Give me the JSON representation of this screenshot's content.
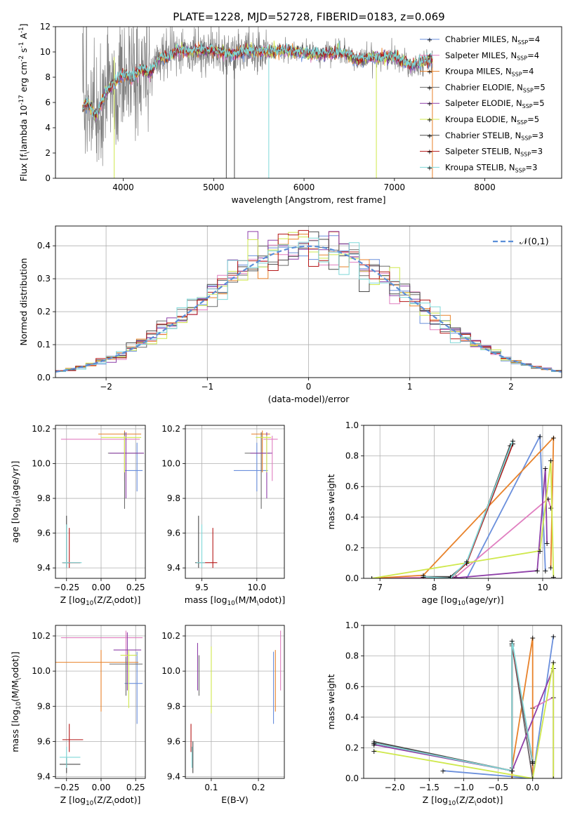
{
  "figure_title": "PLATE=1228, MJD=52728, FIBERID=0183, z=0.069",
  "colors": {
    "chabrier_miles": "#6a8fdc",
    "salpeter_miles": "#e07fc0",
    "kroupa_miles": "#e8822a",
    "chabrier_elodie": "#6b6b6b",
    "salpeter_elodie": "#8e3fa8",
    "kroupa_elodie": "#cfe84c",
    "chabrier_stelib": "#4a4a4a",
    "salpeter_stelib": "#b51818",
    "kroupa_stelib": "#7fd8d8",
    "data_grey": "#808080",
    "normal_curve": "#5b8fd8",
    "grid": "#b0b0b0"
  },
  "chart_data": [
    {
      "type": "line",
      "id": "spectrum",
      "title": "PLATE=1228, MJD=52728, FIBERID=0183, z=0.069",
      "xlabel": "wavelength [Angstrom, rest frame]",
      "ylabel": "Flux [f$_\\lambda 10^{-17}$ erg cm$^{-2}$ s$^{-1}$ A$^{-1}$]",
      "xlim": [
        3250,
        8850
      ],
      "ylim": [
        0,
        12
      ],
      "xticks": [
        "4000",
        "5000",
        "6000",
        "7000",
        "8000"
      ],
      "yticks": [
        "0",
        "2",
        "4",
        "6",
        "8",
        "10",
        "12"
      ],
      "legend_position": "top-right",
      "legend": [
        "Chabrier MILES, N$_{SSP}$=4",
        "Salpeter MILES, N$_{SSP}$=4",
        "Kroupa MILES, N$_{SSP}$=4",
        "Chabrier ELODIE, N$_{SSP}$=5",
        "Salpeter ELODIE, N$_{SSP}$=5",
        "Kroupa ELODIE, N$_{SSP}$=5",
        "Chabrier STELIB, N$_{SSP}$=3",
        "Salpeter STELIB, N$_{SSP}$=3",
        "Kroupa STELIB, N$_{SSP}$=3"
      ],
      "continuum_knots": {
        "x": [
          3550,
          3600,
          3700,
          3800,
          3900,
          4000,
          4100,
          4200,
          4300,
          4400,
          4500,
          4600,
          4700,
          4800,
          5000,
          5200,
          5400,
          5600,
          5800,
          6000,
          6200,
          6400,
          6600,
          6800,
          7000,
          7200,
          7400
        ],
        "y": [
          5.5,
          6.0,
          4.8,
          6.8,
          7.5,
          8.2,
          8.0,
          8.6,
          8.3,
          9.5,
          9.6,
          10.2,
          10.0,
          10.1,
          10.1,
          9.8,
          10.1,
          10.0,
          10.1,
          9.9,
          9.8,
          10.0,
          9.4,
          9.6,
          9.6,
          8.9,
          9.4
        ]
      }
    },
    {
      "type": "line",
      "id": "residual_histogram",
      "xlabel": "(data-model)/error",
      "ylabel": "Normed distribution",
      "xlim": [
        -2.5,
        2.5
      ],
      "ylim": [
        0,
        0.46
      ],
      "xticks": [
        "−2",
        "−1",
        "0",
        "1",
        "2"
      ],
      "yticks": [
        "0.0",
        "0.1",
        "0.2",
        "0.3",
        "0.4"
      ],
      "bin_width": 0.1,
      "legend_position": "top-right",
      "legend": [
        "$\\mathcal{N}(0,1)$"
      ],
      "grid": true
    },
    {
      "type": "scatter",
      "id": "age_vs_Z",
      "xlabel": "Z [log$_{10}$($Z/Z_\\odot$)]",
      "ylabel": "age  [log$_{10}$($age/yr$)]",
      "xlim": [
        -0.33,
        0.32
      ],
      "ylim": [
        9.34,
        10.22
      ],
      "xticks": [
        "−0.25",
        "0.00",
        "0.25"
      ],
      "yticks": [
        "9.4",
        "9.6",
        "9.8",
        "10.0",
        "10.2"
      ],
      "grid": true,
      "points": [
        {
          "x": 0.26,
          "y": 9.96,
          "xerr": [
            0.09,
            0.04
          ],
          "yerr": [
            0.12,
            0.16
          ]
        },
        {
          "x": 0.17,
          "y": 10.14,
          "xerr": [
            0.46,
            0.11
          ],
          "yerr": [
            0.24,
            0.02
          ]
        },
        {
          "x": 0.17,
          "y": 10.17,
          "xerr": [
            0.19,
            0.12
          ],
          "yerr": [
            0.22,
            0.02
          ]
        },
        {
          "x": 0.17,
          "y": 10.06,
          "xerr": [
            0.12,
            0.14
          ],
          "yerr": [
            0.32,
            0.12
          ]
        },
        {
          "x": 0.18,
          "y": 10.06,
          "xerr": [
            0.12,
            0.13
          ],
          "yerr": [
            0.26,
            0.12
          ]
        },
        {
          "x": 0.17,
          "y": 10.15,
          "xerr": [
            0.17,
            0.12
          ],
          "yerr": [
            0.2,
            0.01
          ]
        },
        {
          "x": -0.25,
          "y": 9.43,
          "xerr": [
            0.03,
            0.1
          ],
          "yerr": [
            0.03,
            0.27
          ]
        },
        {
          "x": -0.23,
          "y": 9.43,
          "xerr": [
            0.05,
            0.08
          ],
          "yerr": [
            0.03,
            0.2
          ]
        },
        {
          "x": -0.25,
          "y": 9.43,
          "xerr": [
            0.03,
            0.11
          ],
          "yerr": [
            0.03,
            0.22
          ]
        }
      ]
    },
    {
      "type": "scatter",
      "id": "age_vs_mass",
      "xlabel": "mass [log$_{10}$($M/M_\\odot$)]",
      "ylabel": "",
      "xlim": [
        9.35,
        10.25
      ],
      "ylim": [
        9.34,
        10.22
      ],
      "xticks": [
        "9.5",
        "10.0"
      ],
      "yticks": [
        "9.4",
        "9.6",
        "9.8",
        "10.0",
        "10.2"
      ],
      "grid": true,
      "points": [
        {
          "x": 10.0,
          "y": 9.96,
          "xerr": [
            0.21,
            0.1
          ],
          "yerr": [
            0.12,
            0.16
          ]
        },
        {
          "x": 10.14,
          "y": 10.14,
          "xerr": [
            0.08,
            0.05
          ],
          "yerr": [
            0.24,
            0.02
          ]
        },
        {
          "x": 10.05,
          "y": 10.17,
          "xerr": [
            0.1,
            0.07
          ],
          "yerr": [
            0.22,
            0.02
          ]
        },
        {
          "x": 10.04,
          "y": 10.06,
          "xerr": [
            0.15,
            0.08
          ],
          "yerr": [
            0.32,
            0.12
          ]
        },
        {
          "x": 10.09,
          "y": 10.06,
          "xerr": [
            0.15,
            0.05
          ],
          "yerr": [
            0.26,
            0.12
          ]
        },
        {
          "x": 10.09,
          "y": 10.15,
          "xerr": [
            0.1,
            0.04
          ],
          "yerr": [
            0.2,
            0.01
          ]
        },
        {
          "x": 9.47,
          "y": 9.43,
          "xerr": [
            0.03,
            0.03
          ],
          "yerr": [
            0.03,
            0.27
          ]
        },
        {
          "x": 9.6,
          "y": 9.43,
          "xerr": [
            0.1,
            0.04
          ],
          "yerr": [
            0.03,
            0.2
          ]
        },
        {
          "x": 9.5,
          "y": 9.43,
          "xerr": [
            0.05,
            0.03
          ],
          "yerr": [
            0.03,
            0.22
          ]
        }
      ]
    },
    {
      "type": "line",
      "id": "weight_vs_age",
      "xlabel": "age  [log$_{10}$($age/yr$)]",
      "ylabel": "mass weight",
      "xlim": [
        6.7,
        10.35
      ],
      "ylim": [
        0,
        1.0
      ],
      "xticks": [
        "7",
        "8",
        "9",
        "10"
      ],
      "yticks": [
        "0.0",
        "0.2",
        "0.4",
        "0.6",
        "0.8",
        "1.0"
      ],
      "grid": true,
      "series": [
        {
          "x": [
            8.6,
            9.95,
            10.05
          ],
          "y": [
            0.0,
            0.93,
            0.05
          ]
        },
        {
          "x": [
            6.85,
            8.4,
            10.1,
            10.15
          ],
          "y": [
            0.0,
            0.01,
            0.52,
            0.46
          ]
        },
        {
          "x": [
            6.85,
            7.8,
            10.2,
            10.15
          ],
          "y": [
            0.0,
            0.02,
            0.92,
            0.07
          ]
        },
        {
          "x": [
            7.8,
            8.3,
            8.6,
            9.45
          ],
          "y": [
            0.01,
            0.01,
            0.1,
            0.88
          ]
        },
        {
          "x": [
            8.3,
            9.9,
            10.05,
            10.08
          ],
          "y": [
            0.0,
            0.05,
            0.72,
            0.23
          ]
        },
        {
          "x": [
            6.85,
            9.95,
            10.15,
            10.2
          ],
          "y": [
            0.0,
            0.18,
            0.77,
            0.01
          ]
        },
        {
          "x": [
            7.8,
            8.3,
            8.6,
            9.4
          ],
          "y": [
            0.01,
            0.01,
            0.1,
            0.87
          ]
        },
        {
          "x": [
            7.8,
            8.3,
            8.6,
            9.45
          ],
          "y": [
            0.01,
            0.0,
            0.1,
            0.88
          ]
        },
        {
          "x": [
            7.8,
            8.3,
            8.6,
            9.45
          ],
          "y": [
            0.01,
            0.0,
            0.11,
            0.9
          ]
        }
      ]
    },
    {
      "type": "scatter",
      "id": "mass_vs_Z",
      "xlabel": "Z [log$_{10}$($Z/Z_\\odot$)]",
      "ylabel": "mass [log$_{10}$($M/M_\\odot$)]",
      "xlim": [
        -0.33,
        0.32
      ],
      "ylim": [
        9.39,
        10.26
      ],
      "xticks": [
        "−0.25",
        "0.00",
        "0.25"
      ],
      "yticks": [
        "9.4",
        "9.6",
        "9.8",
        "10.0",
        "10.2"
      ],
      "grid": true,
      "points": [
        {
          "x": 0.26,
          "y": 9.93,
          "xerr": [
            0.09,
            0.04
          ],
          "yerr": [
            0.23,
            0.18
          ]
        },
        {
          "x": 0.18,
          "y": 10.19,
          "xerr": [
            0.47,
            0.12
          ],
          "yerr": [
            0.14,
            0.04
          ]
        },
        {
          "x": 0.0,
          "y": 10.05,
          "xerr": [
            0.5,
            0.27
          ],
          "yerr": [
            0.28,
            0.07
          ]
        },
        {
          "x": 0.18,
          "y": 10.04,
          "xerr": [
            0.12,
            0.12
          ],
          "yerr": [
            0.18,
            0.04
          ]
        },
        {
          "x": 0.19,
          "y": 10.12,
          "xerr": [
            0.1,
            0.1
          ],
          "yerr": [
            0.23,
            0.1
          ]
        },
        {
          "x": 0.2,
          "y": 10.09,
          "xerr": [
            0.06,
            0.06
          ],
          "yerr": [
            0.3,
            0.03
          ]
        },
        {
          "x": -0.25,
          "y": 9.47,
          "xerr": [
            0.05,
            0.1
          ],
          "yerr": [
            0.05,
            0.04
          ]
        },
        {
          "x": -0.23,
          "y": 9.61,
          "xerr": [
            0.05,
            0.1
          ],
          "yerr": [
            0.07,
            0.09
          ]
        },
        {
          "x": -0.25,
          "y": 9.51,
          "xerr": [
            0.05,
            0.1
          ],
          "yerr": [
            0.06,
            0.06
          ]
        }
      ]
    },
    {
      "type": "scatter",
      "id": "mass_vs_ebv",
      "xlabel": "E(B-V)",
      "ylabel": "",
      "xlim": [
        0.045,
        0.255
      ],
      "ylim": [
        9.39,
        10.26
      ],
      "xticks": [
        "0.1",
        "0.2"
      ],
      "yticks": [
        "9.4",
        "9.6",
        "9.8",
        "10.0",
        "10.2"
      ],
      "grid": true,
      "points": [
        {
          "x": 0.232,
          "y": 9.93,
          "yerr": [
            0.23,
            0.18
          ]
        },
        {
          "x": 0.247,
          "y": 10.19,
          "yerr": [
            0.3,
            0.04
          ]
        },
        {
          "x": 0.236,
          "y": 10.05,
          "yerr": [
            0.28,
            0.07
          ]
        },
        {
          "x": 0.074,
          "y": 10.04,
          "yerr": [
            0.18,
            0.05
          ]
        },
        {
          "x": 0.071,
          "y": 10.12,
          "yerr": [
            0.23,
            0.04
          ]
        },
        {
          "x": 0.1,
          "y": 10.09,
          "yerr": [
            0.33,
            0.05
          ]
        },
        {
          "x": 0.061,
          "y": 9.47,
          "yerr": [
            0.05,
            0.13
          ]
        },
        {
          "x": 0.057,
          "y": 9.61,
          "yerr": [
            0.07,
            0.09
          ]
        },
        {
          "x": 0.059,
          "y": 9.51,
          "yerr": [
            0.06,
            0.06
          ]
        }
      ]
    },
    {
      "type": "line",
      "id": "weight_vs_Z",
      "xlabel": "Z [log$_{10}$($Z/Z_\\odot$)]",
      "ylabel": "mass weight",
      "xlim": [
        -2.45,
        0.42
      ],
      "ylim": [
        0,
        1.0
      ],
      "xticks": [
        "−2.0",
        "−1.5",
        "−1.0",
        "−0.5",
        "0.0"
      ],
      "yticks": [
        "0.0",
        "0.2",
        "0.4",
        "0.6",
        "0.8",
        "1.0"
      ],
      "grid": true,
      "series": [
        {
          "x": [
            -1.3,
            0.0,
            0.3
          ],
          "y": [
            0.05,
            0.0,
            0.93
          ]
        },
        {
          "x": [
            -0.3,
            0.0,
            0.0,
            0.3
          ],
          "y": [
            0.88,
            0.0,
            0.46,
            0.53
          ]
        },
        {
          "x": [
            -0.3,
            -0.3,
            0.0,
            0.0
          ],
          "y": [
            0.0,
            0.07,
            0.92,
            0.0
          ]
        },
        {
          "x": [
            -2.3,
            -0.3,
            -0.3,
            0.0
          ],
          "y": [
            0.23,
            0.05,
            0.88,
            0.0
          ]
        },
        {
          "x": [
            -2.3,
            -0.3,
            0.3,
            0.3
          ],
          "y": [
            0.22,
            0.05,
            0.72,
            0.0
          ]
        },
        {
          "x": [
            -2.3,
            0.0,
            0.3,
            0.3
          ],
          "y": [
            0.18,
            0.0,
            0.76,
            0.0
          ]
        },
        {
          "x": [
            -2.3,
            -0.3,
            -0.3,
            0.0
          ],
          "y": [
            0.24,
            0.05,
            0.87,
            0.1
          ]
        },
        {
          "x": [
            -2.3,
            -0.3,
            -0.3,
            0.0
          ],
          "y": [
            0.23,
            0.05,
            0.88,
            0.11
          ]
        },
        {
          "x": [
            -2.3,
            -0.3,
            -0.3,
            0.0
          ],
          "y": [
            0.23,
            0.05,
            0.9,
            0.11
          ]
        }
      ]
    }
  ]
}
